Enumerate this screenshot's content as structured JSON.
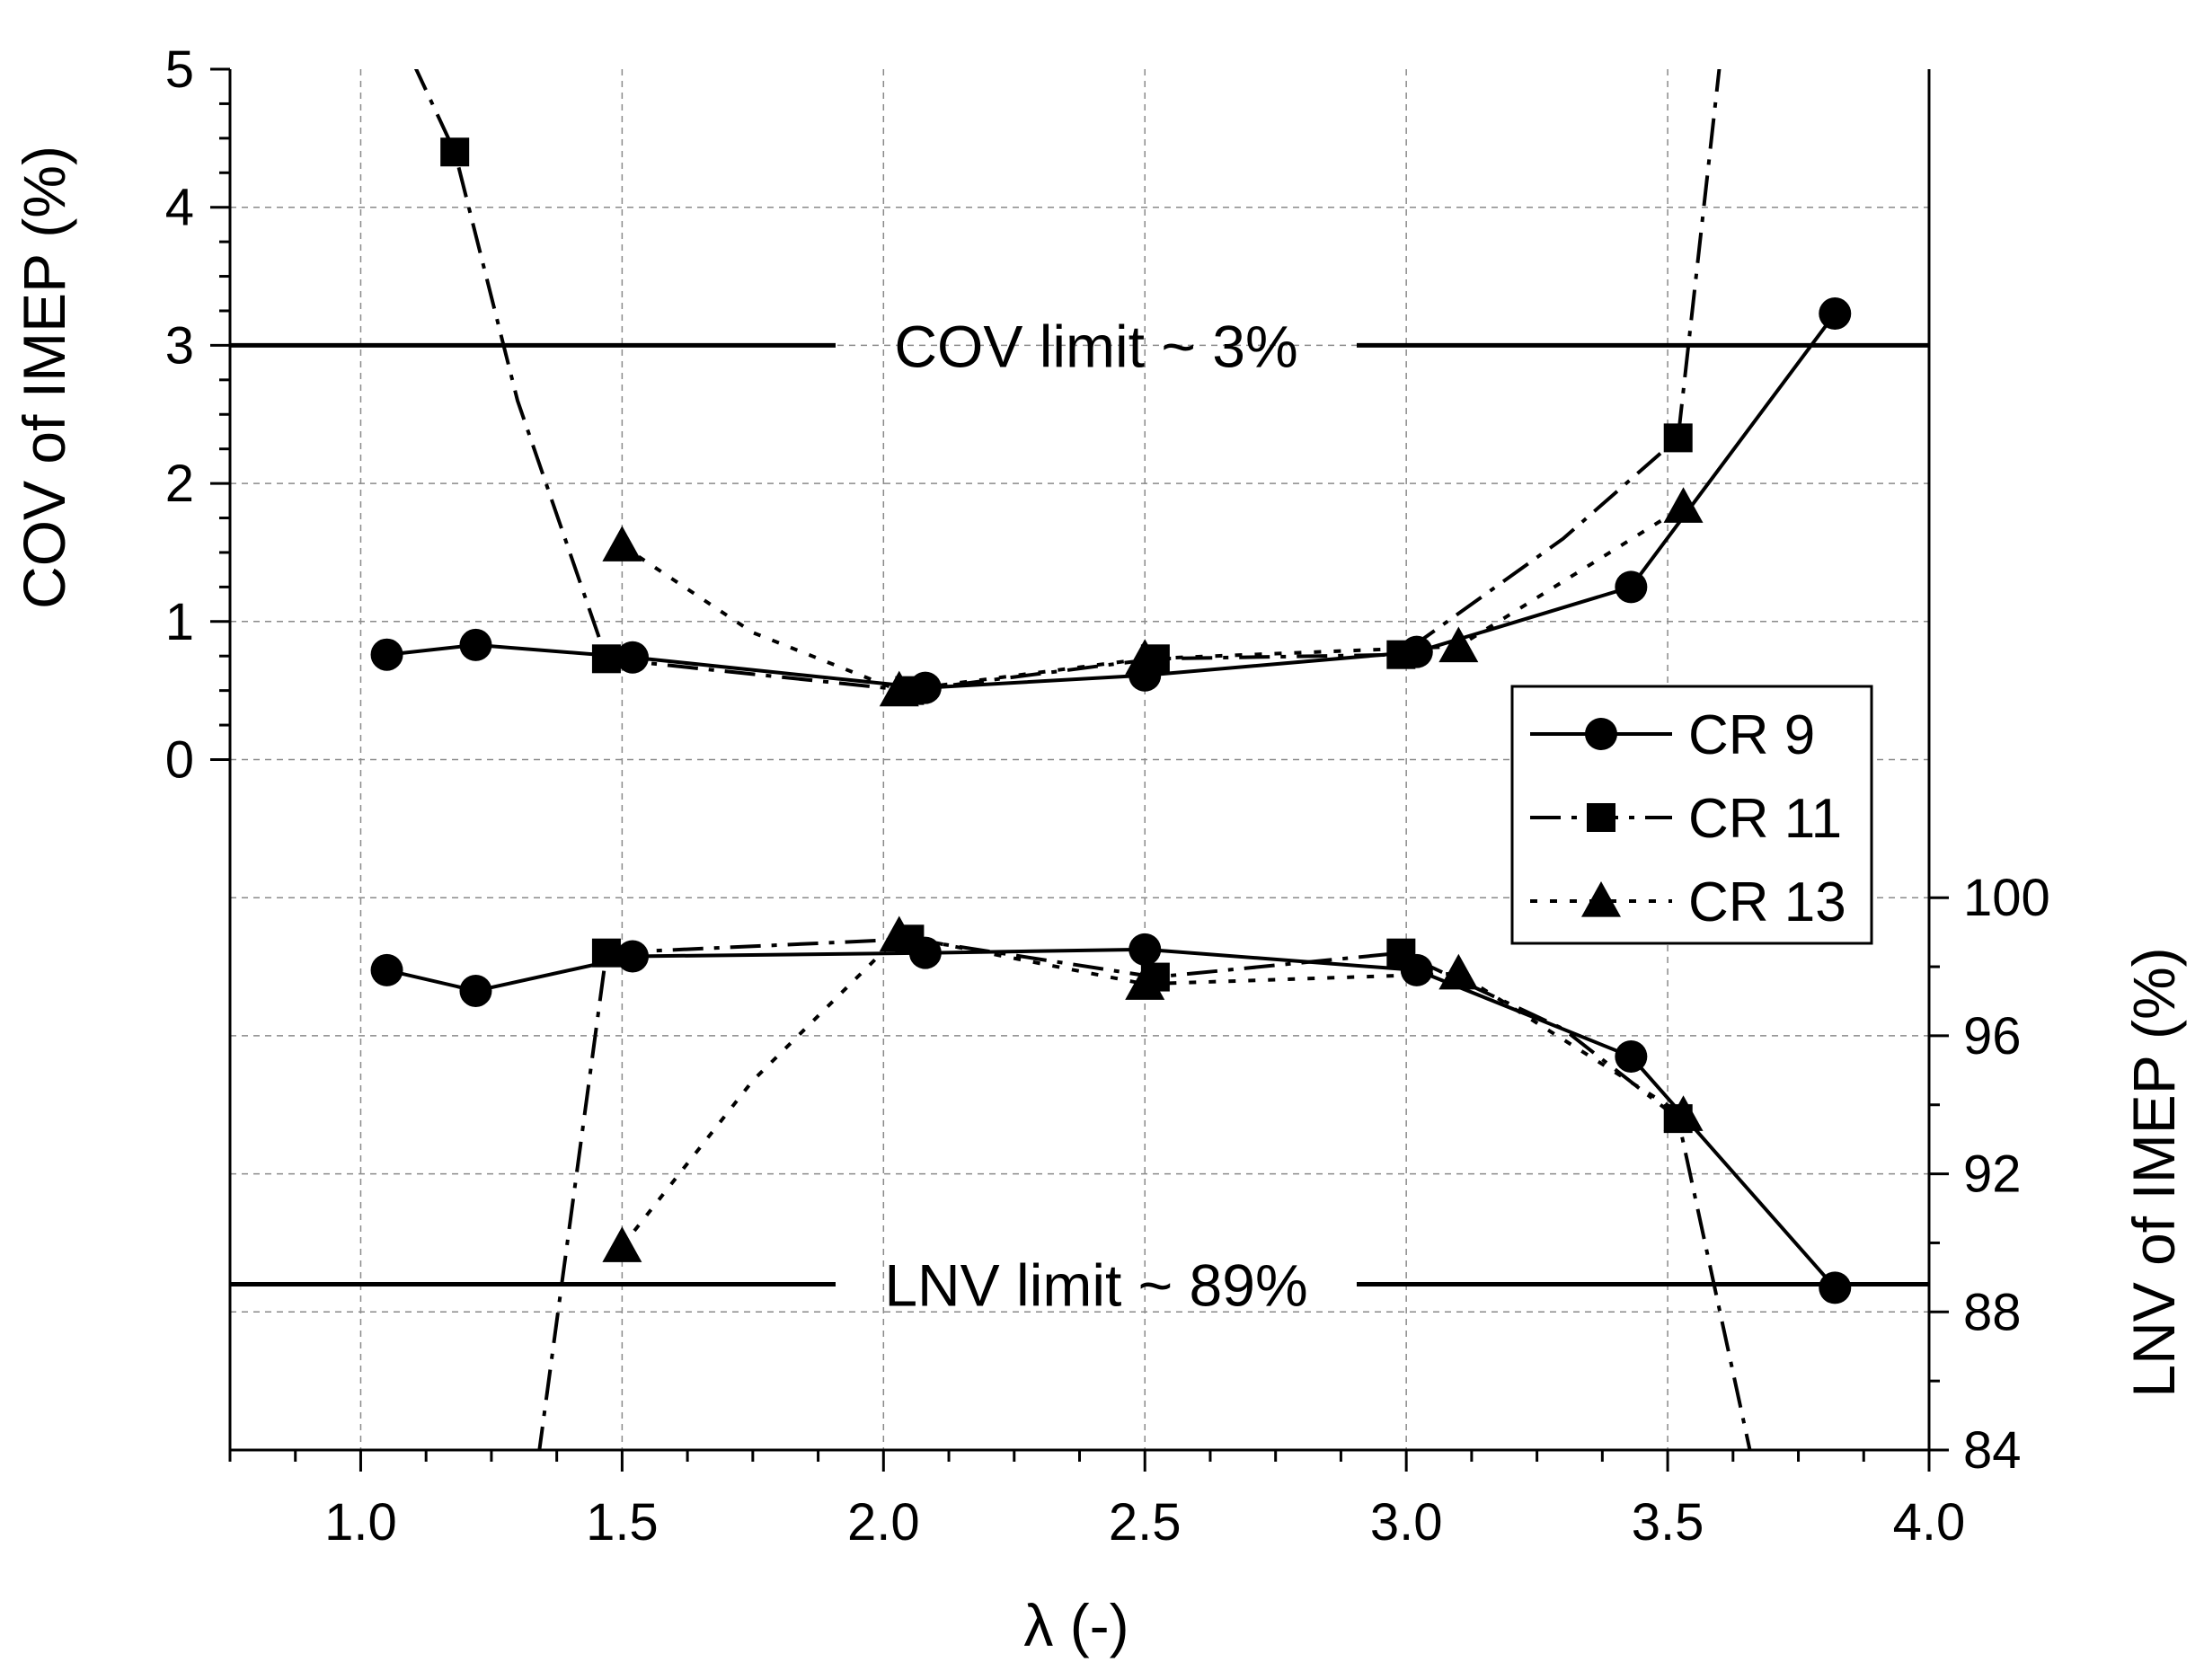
{
  "chart_data": {
    "type": "line",
    "xlabel": "λ (-)",
    "ylabel_left": "COV of IMEP (%)",
    "ylabel_right": "LNV of IMEP (%)",
    "xlim": [
      0.75,
      4.0
    ],
    "xticks": [
      1.0,
      1.5,
      2.0,
      2.5,
      3.0,
      3.5,
      4.0
    ],
    "xtick_labels": [
      "1.0",
      "1.5",
      "2.0",
      "2.5",
      "3.0",
      "3.5",
      "4.0"
    ],
    "cov_axis": {
      "range": [
        -5,
        5
      ],
      "ticks": [
        0,
        1,
        2,
        3,
        4,
        5
      ],
      "tick_labels": [
        "0",
        "1",
        "2",
        "3",
        "4",
        "5"
      ]
    },
    "lnv_axis": {
      "range": [
        84,
        124
      ],
      "ticks": [
        84,
        88,
        92,
        96,
        100
      ],
      "tick_labels": [
        "84",
        "88",
        "92",
        "96",
        "100"
      ]
    },
    "grid": true,
    "cov_limit": {
      "value": 3,
      "label": "COV limit ~ 3%"
    },
    "lnv_limit": {
      "value": 88.8,
      "label": "LNV limit ~ 89%"
    },
    "legend": {
      "position": "right-middle"
    },
    "series": [
      {
        "name": "CR 9",
        "marker": "circle",
        "line": "solid",
        "cov": [
          [
            1.05,
            0.76
          ],
          [
            1.22,
            0.83
          ],
          [
            1.52,
            0.74
          ],
          [
            2.08,
            0.52
          ],
          [
            2.5,
            0.61
          ],
          [
            3.02,
            0.78
          ],
          [
            3.43,
            1.25
          ],
          [
            3.82,
            3.23
          ]
        ],
        "lnv": [
          [
            1.05,
            97.9
          ],
          [
            1.22,
            97.3
          ],
          [
            1.52,
            98.3
          ],
          [
            2.08,
            98.4
          ],
          [
            2.5,
            98.5
          ],
          [
            3.02,
            97.9
          ],
          [
            3.43,
            95.4
          ],
          [
            3.82,
            88.7
          ]
        ]
      },
      {
        "name": "CR 11",
        "marker": "square",
        "line": "dash-dot",
        "cov": [
          [
            1.18,
            4.4
          ],
          [
            1.47,
            0.73
          ],
          [
            2.05,
            0.5
          ],
          [
            2.52,
            0.73
          ],
          [
            2.99,
            0.76
          ],
          [
            3.52,
            2.33
          ]
        ],
        "cov_curve": [
          [
            1.1,
            5.05
          ],
          [
            1.18,
            4.4
          ],
          [
            1.3,
            2.6
          ],
          [
            1.47,
            0.73
          ],
          [
            2.05,
            0.5
          ],
          [
            2.52,
            0.73
          ],
          [
            2.99,
            0.76
          ],
          [
            3.3,
            1.6
          ],
          [
            3.52,
            2.33
          ],
          [
            3.6,
            5.05
          ]
        ],
        "lnv": [
          [
            1.47,
            98.4
          ],
          [
            2.05,
            98.8
          ],
          [
            2.52,
            97.7
          ],
          [
            2.99,
            98.4
          ],
          [
            3.52,
            93.6
          ]
        ],
        "lnv_curve": [
          [
            1.34,
            83.8
          ],
          [
            1.47,
            98.4
          ],
          [
            2.05,
            98.8
          ],
          [
            2.52,
            97.7
          ],
          [
            2.99,
            98.4
          ],
          [
            3.3,
            96.2
          ],
          [
            3.52,
            93.6
          ],
          [
            3.66,
            83.8
          ]
        ]
      },
      {
        "name": "CR 13",
        "marker": "triangle",
        "line": "dot",
        "cov": [
          [
            1.5,
            1.55
          ],
          [
            2.03,
            0.5
          ],
          [
            2.5,
            0.73
          ],
          [
            3.1,
            0.82
          ],
          [
            3.53,
            1.83
          ]
        ],
        "cov_curve": [
          [
            1.5,
            1.55
          ],
          [
            1.75,
            0.92
          ],
          [
            2.03,
            0.5
          ],
          [
            2.5,
            0.73
          ],
          [
            3.1,
            0.82
          ],
          [
            3.53,
            1.83
          ]
        ],
        "lnv": [
          [
            1.5,
            89.9
          ],
          [
            2.03,
            98.9
          ],
          [
            2.5,
            97.5
          ],
          [
            3.1,
            97.8
          ],
          [
            3.53,
            93.7
          ]
        ],
        "lnv_curve": [
          [
            1.5,
            89.9
          ],
          [
            1.75,
            94.7
          ],
          [
            2.03,
            98.9
          ],
          [
            2.5,
            97.5
          ],
          [
            3.1,
            97.8
          ],
          [
            3.53,
            93.7
          ]
        ]
      }
    ]
  }
}
